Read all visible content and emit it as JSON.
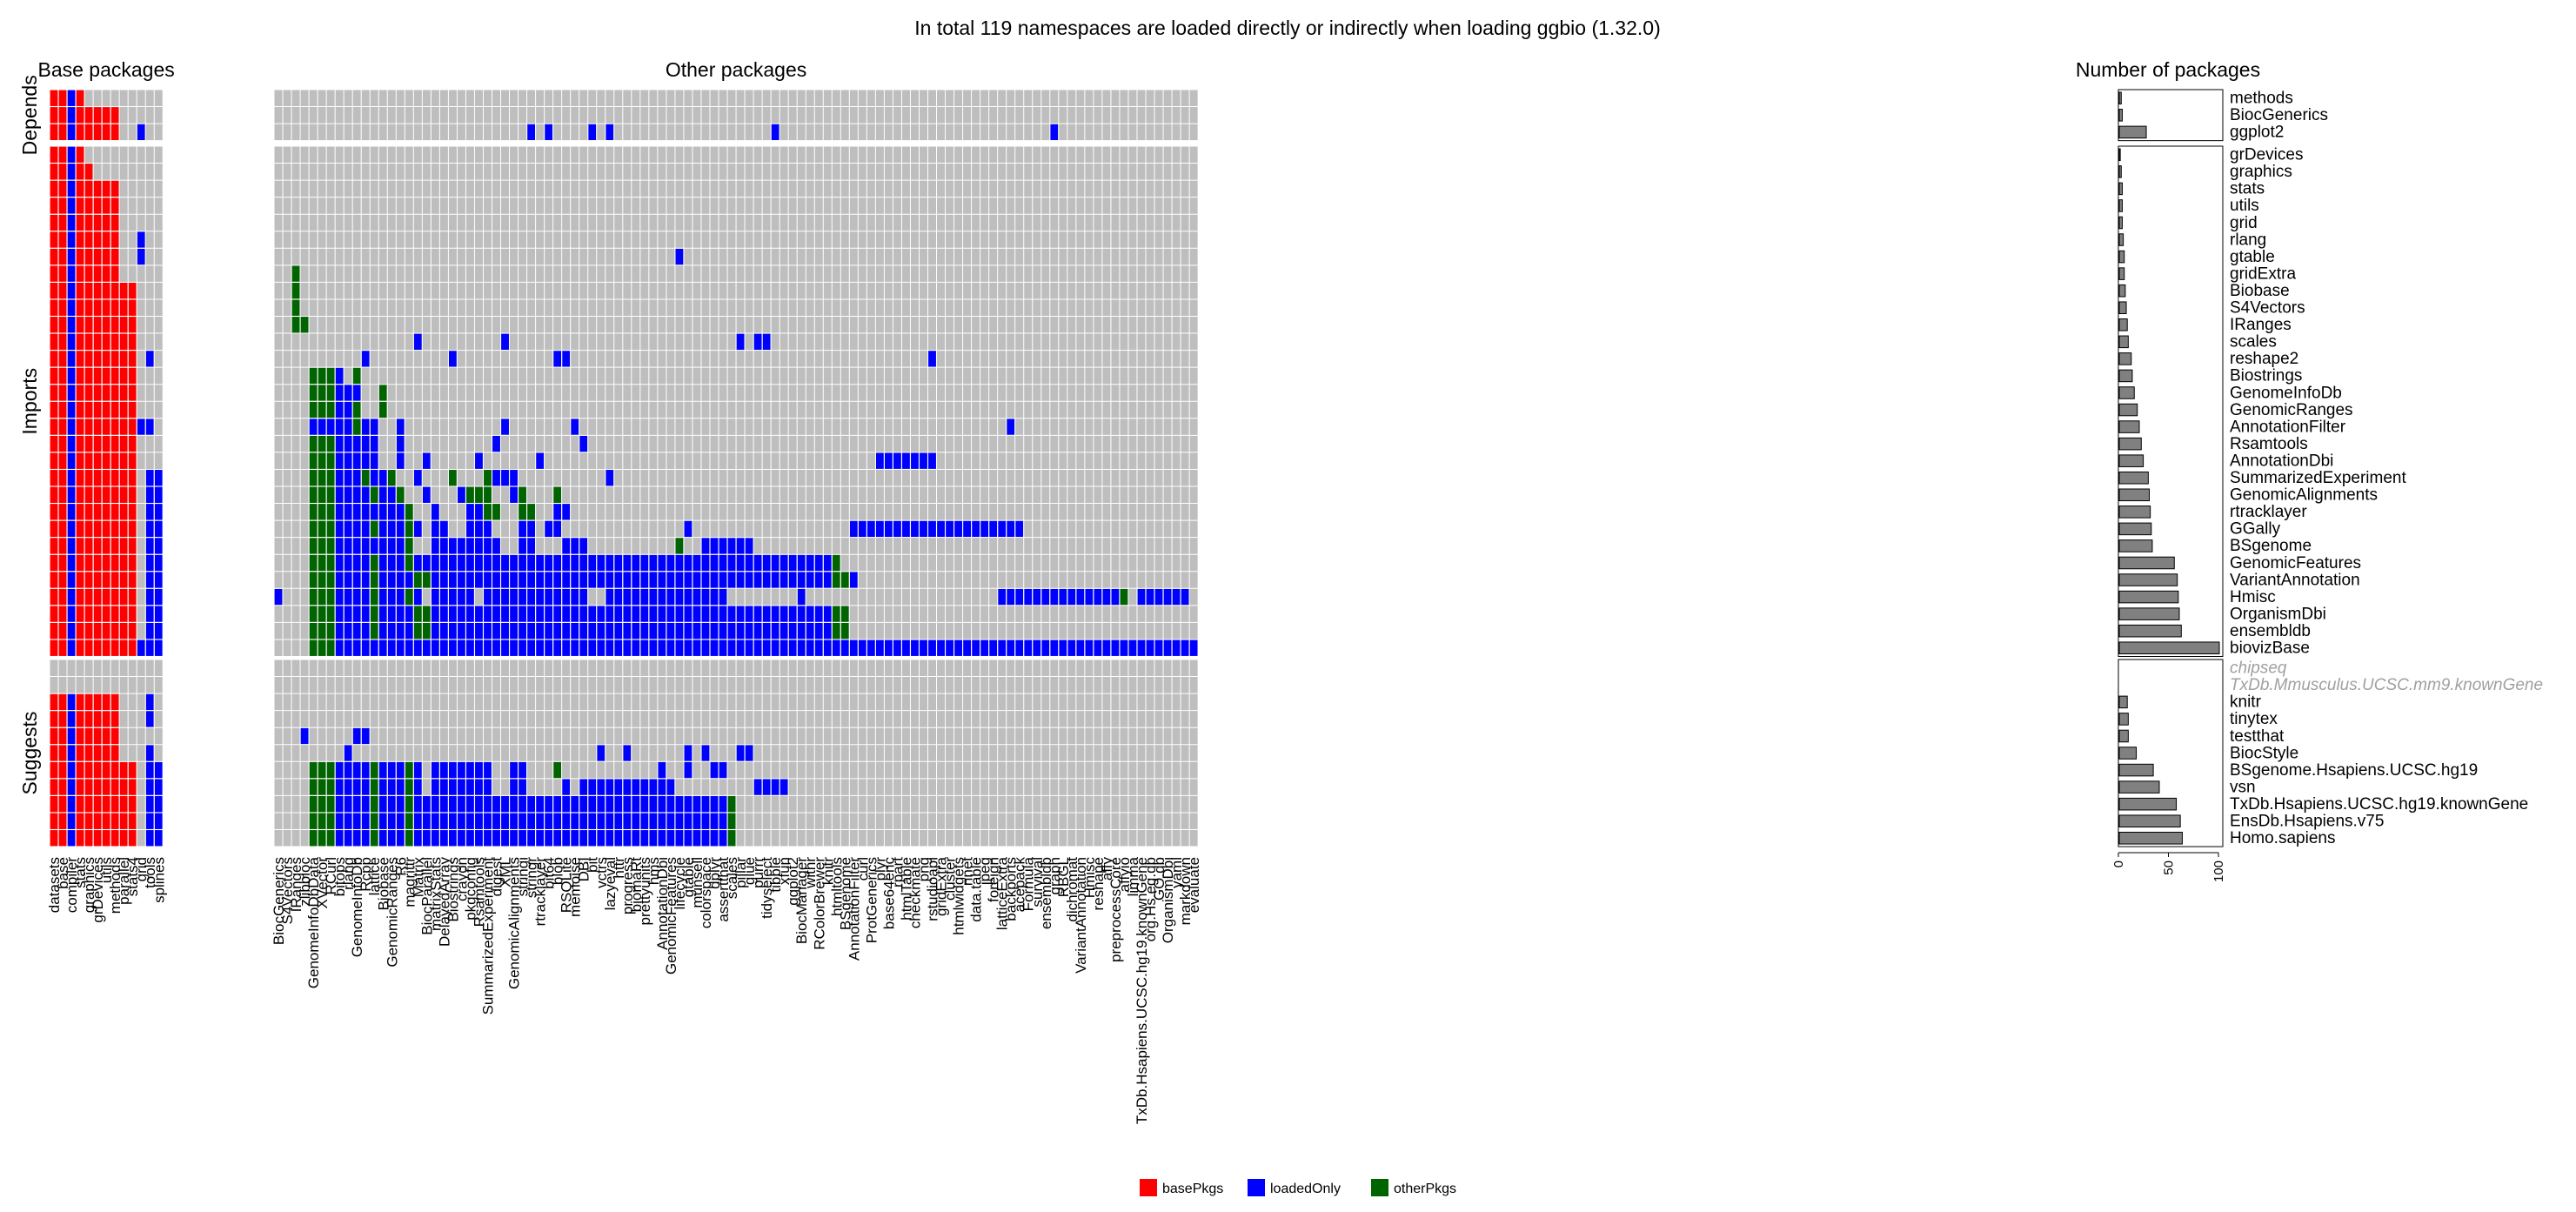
{
  "chart_data": {
    "type": "heatmap",
    "title": "In total 119 namespaces are loaded directly or indirectly when loading ggbio (1.32.0)",
    "column_groups": [
      {
        "label": "Base packages",
        "columns": [
          "datasets",
          "base",
          "compiler",
          "stats",
          "graphics",
          "grDevices",
          "utils",
          "methods",
          "parallel",
          "stats4",
          "grid",
          "tools",
          "splines"
        ]
      },
      {
        "label": "Other packages",
        "columns": [
          "BiocGenerics",
          "S4Vectors",
          "IRanges",
          "zlibbioc",
          "GenomeInfoDbData",
          "XVector",
          "RCurl",
          "bitops",
          "rlang",
          "GenomeInfoDb",
          "Rcpp",
          "lattice",
          "Biobase",
          "GenomicRanges",
          "R6",
          "magrittr",
          "Matrix",
          "BiocParallel",
          "matrixStats",
          "DelayedArray",
          "Biostrings",
          "crayon",
          "pkgconfig",
          "Rsamtools",
          "SummarizedExperiment",
          "digest",
          "XML",
          "GenomicAlignments",
          "stringi",
          "stringr",
          "rtracklayer",
          "bit64",
          "blob",
          "RSQLite",
          "memoise",
          "DBI",
          "bit",
          "vctrs",
          "lazyeval",
          "httr",
          "progress",
          "biomaRt",
          "prettyunits",
          "hms",
          "AnnotationDbi",
          "GenomicFeatures",
          "lifecycle",
          "gtable",
          "munsell",
          "colorspace",
          "dplyr",
          "assertthat",
          "scales",
          "pillar",
          "glue",
          "purrr",
          "tidyselect",
          "tibble",
          "xfun",
          "ggplot2",
          "BiocManager",
          "withr",
          "RColorBrewer",
          "knitr",
          "htmltools",
          "BSgenome",
          "AnnotationFilter",
          "curl",
          "ProtGenerics",
          "plyr",
          "base64enc",
          "rpart",
          "htmlTable",
          "checkmate",
          "png",
          "rstudioapi",
          "gridExtra",
          "cluster",
          "htmlwidgets",
          "nnet",
          "data.table",
          "jpeg",
          "foreign",
          "latticeExtra",
          "backports",
          "acepack",
          "Formula",
          "survival",
          "ensembldb",
          "graph",
          "RBGL",
          "dichromat",
          "VariantAnnotation",
          "Hmisc",
          "reshape",
          "affy",
          "preprocessCore",
          "affyio",
          "limma",
          "TxDb.Hsapiens.UCSC.hg19.knownGene",
          "org.Hs.eg.db",
          "GO.db",
          "OrganismDbi",
          "yaml",
          "markdown",
          "evaluate"
        ]
      }
    ],
    "count_panel_label": "Number of packages",
    "count_axis": {
      "ticks": [
        0,
        50,
        100
      ],
      "range": [
        0,
        100
      ]
    },
    "row_groups": [
      {
        "label": "Depends",
        "rows": [
          {
            "name": "methods",
            "count": 2,
            "cells": "BBLB"
          },
          {
            "name": "BiocGenerics",
            "count": 3,
            "cells": "BBLBBBBB"
          },
          {
            "name": "ggplot2",
            "count": 27,
            "cells": "BBLBBBBB..L...............................L.L....L.L..................L...............................L........................L..L.L.L.L.L.L.L.L.L......L"
          }
        ]
      },
      {
        "label": "Imports",
        "rows": [
          {
            "name": "grDevices",
            "count": 1,
            "cells": "BBLB"
          },
          {
            "name": "graphics",
            "count": 2,
            "cells": "BBLBB"
          },
          {
            "name": "stats",
            "count": 3,
            "cells": "BBLBBBBB"
          },
          {
            "name": "utils",
            "count": 3,
            "cells": "BBLBBBBB"
          },
          {
            "name": "grid",
            "count": 3,
            "cells": "BBLBBBBB"
          },
          {
            "name": "rlang",
            "count": 4,
            "cells": "BBLBBBBB..L"
          },
          {
            "name": "gtable",
            "count": 5,
            "cells": "BBLBBBBB..L................................................L"
          },
          {
            "name": "gridExtra",
            "count": 5,
            "cells": "BBLBBBBB.......O"
          },
          {
            "name": "Biobase",
            "count": 6,
            "cells": "BBLBBBBBBB.....O"
          },
          {
            "name": "S4Vectors",
            "count": 7,
            "cells": "BBLBBBBBBB.....O"
          },
          {
            "name": "IRanges",
            "count": 8,
            "cells": "BBLBBBBBBB.....OO"
          },
          {
            "name": "scales",
            "count": 9,
            "cells": "BBLBBBBBBB...................L.........L..........................L.LL"
          },
          {
            "name": "reshape2",
            "count": 12,
            "cells": "BBLBBBBBBB.L...........L.........L...........LL.........................................L"
          },
          {
            "name": "Biostrings",
            "count": 13,
            "cells": "BBLBBBBBBB.......OOOL.O"
          },
          {
            "name": "GenomeInfoDb",
            "count": 15,
            "cells": "BBLBBBBBBB.......OOOLLL..O"
          },
          {
            "name": "GenomicRanges",
            "count": 18,
            "cells": "BBLBBBBBBB.......OOOLLO..O"
          },
          {
            "name": "AnnotationFilter",
            "count": 20,
            "cells": "BBLBBBBBBBLL.....LLLLLOLL..L...........L.......L.................................................L"
          },
          {
            "name": "Rsamtools",
            "count": 22,
            "cells": "BBLBBBBBBB.......OOOLLLLL..L..........L.........L"
          },
          {
            "name": "AnnotationDbi",
            "count": 24,
            "cells": "BBLBBBBBBB.......OOOLLLLL..L..L.....L......L......................................LLLLLLL"
          },
          {
            "name": "SummarizedExperiment",
            "count": 29,
            "cells": "BBLBBBBBBB.LL....OOOLLLOLLO..L...O...OLLL..........L"
          },
          {
            "name": "GenomicAlignments",
            "count": 30,
            "cells": "BBLBBBBBBB.LL....OOOLLLLOLLO..L...LOOO..LO...O"
          },
          {
            "name": "rtracklayer",
            "count": 31,
            "cells": "BBLBBBBBBB.LL....OOOLLLLLLLLO..L...LLOO..OO..LL"
          },
          {
            "name": "GGally",
            "count": 32,
            "cells": "BBLBBBBBBB.LL....OOOLLLLOLLLOL.LL..LLL...LL.LL..............L..................LLLLLLLLLLLLLLLLLLLL......................L.......L"
          },
          {
            "name": "BSgenome",
            "count": 33,
            "cells": "BBLBBBBBBB.LL....OOOLLLLLLLLO..LLLLLLLL..LL...LLL..........O..LLLLLL"
          },
          {
            "name": "GenomicFeatures",
            "count": 55,
            "cells": "BBLBBBBBBB.LL....OOOLLLLOLLLOLLLLLLLLLLLLLLLLLLLLLLLLLLLLLLLLLLLLLLLLLLLLLLLLO"
          },
          {
            "name": "VariantAnnotation",
            "count": 58,
            "cells": "BBLBBBBBBB.LL....OOOLLLLOLLLLOOLLLLLLLLLLLLLLLLLLLLLLLLLLLLLLLLLLLLLLLLLLLLLLOOL"
          },
          {
            "name": "Hmisc",
            "count": 59,
            "cells": "BBLBBBBBBB.LLL...OOOLLLLOLLLOL.LLLLL.LLLLLLLLLLLL..LLLLLLLLLLLLLL........L......................LLLLLLLLLLLLLLO.LLLLLL.......LLLLLLLLLLLLLLLLLLLLLLLLLOO"
          },
          {
            "name": "OrganismDbi",
            "count": 60,
            "cells": "BBLBBBBBBB.LL....OOOLLLLOLLLLOOLLLLLLLLLLLLLLLLLLLLLLLLLLLLLLLLLLLLLLLLLLLLLLOO"
          },
          {
            "name": "ensembldb",
            "count": 62,
            "cells": "BBLBBBBBBB.LL....OOOLLLLOLLLLOOLLLLLLLLLLLLLLLLLLLLLLLLLLLLLLLLLLLLLLLLLLLLLLOO"
          },
          {
            "name": "biovizBase",
            "count": 100,
            "cells": "BBLBBBBBBBLLL....OOOLLLLLLLLLLLLLLLLLLLLLLLLLLLLLLLLLLLLLLLLLLLLLLLLLLLLLLLLLLLLLLLLLLLLLLLLLLLLLLLLLLLLLLLLLLLLLLLLLLLL"
          }
        ]
      },
      {
        "label": "Suggests",
        "rows": [
          {
            "name": "chipseq",
            "count": 0,
            "cells": "",
            "greyed": true
          },
          {
            "name": "TxDb.Mmusculus.UCSC.mm9.knownGene",
            "count": 0,
            "cells": "",
            "greyed": true
          },
          {
            "name": "knitr",
            "count": 8,
            "cells": "BBLBBBBB...L"
          },
          {
            "name": "tinytex",
            "count": 9,
            "cells": "BBLBBBBB...L"
          },
          {
            "name": "testthat",
            "count": 9,
            "cells": "BBLBBBBB........L.....LL"
          },
          {
            "name": "BiocStyle",
            "count": 17,
            "cells": "BBLBBBBB...L.........L............................L..L......L.L...LL"
          },
          {
            "name": "BSgenome.Hsapiens.UCSC.hg19",
            "count": 34,
            "cells": "BBLBBBBBBB.LL....OOOLLLLOLLLOL.LLLLLLL..LL...O...........L..L..LL"
          },
          {
            "name": "vsn",
            "count": 40,
            "cells": "BBLBBBBBBB.LL....OOOLLLLOLLLOL.LLLLLLL..LL....L.LLLLLLLLLLL.........LLLL"
          },
          {
            "name": "TxDb.Hsapiens.UCSC.hg19.knownGene",
            "count": 57,
            "cells": "BBLBBBBBBB.LL....OOOLLLLOLLLOLLLLLLLLLLLLLLLLLLLLLLLLLLLLLLLLLLLLO"
          },
          {
            "name": "EnsDb.Hsapiens.v75",
            "count": 61,
            "cells": "BBLBBBBBBB.LL....OOOLLLLOLLLOLLLLLLLLLLLLLLLLLLLLLLLLLLLLLLLLLLLLO"
          },
          {
            "name": "Homo.sapiens",
            "count": 63,
            "cells": "BBLBBBBBBB.LL....OOOLLLLOLLLOLLLLLLLLLLLLLLLLLLLLLLLLLLLLLLLLLLLLO"
          }
        ]
      }
    ],
    "legend": {
      "placement": "bottom-center",
      "entries": [
        {
          "key": "B",
          "label": "basePkgs",
          "color": "#ff0000"
        },
        {
          "key": "L",
          "label": "loadedOnly",
          "color": "#0000ff"
        },
        {
          "key": "O",
          "label": "otherPkgs",
          "color": "#006400"
        }
      ]
    },
    "colors": {
      "empty": "#bebebe",
      "grid": "#ffffff",
      "bar": "#808080",
      "text": "#000000",
      "greyed": "#a0a0a0"
    }
  }
}
